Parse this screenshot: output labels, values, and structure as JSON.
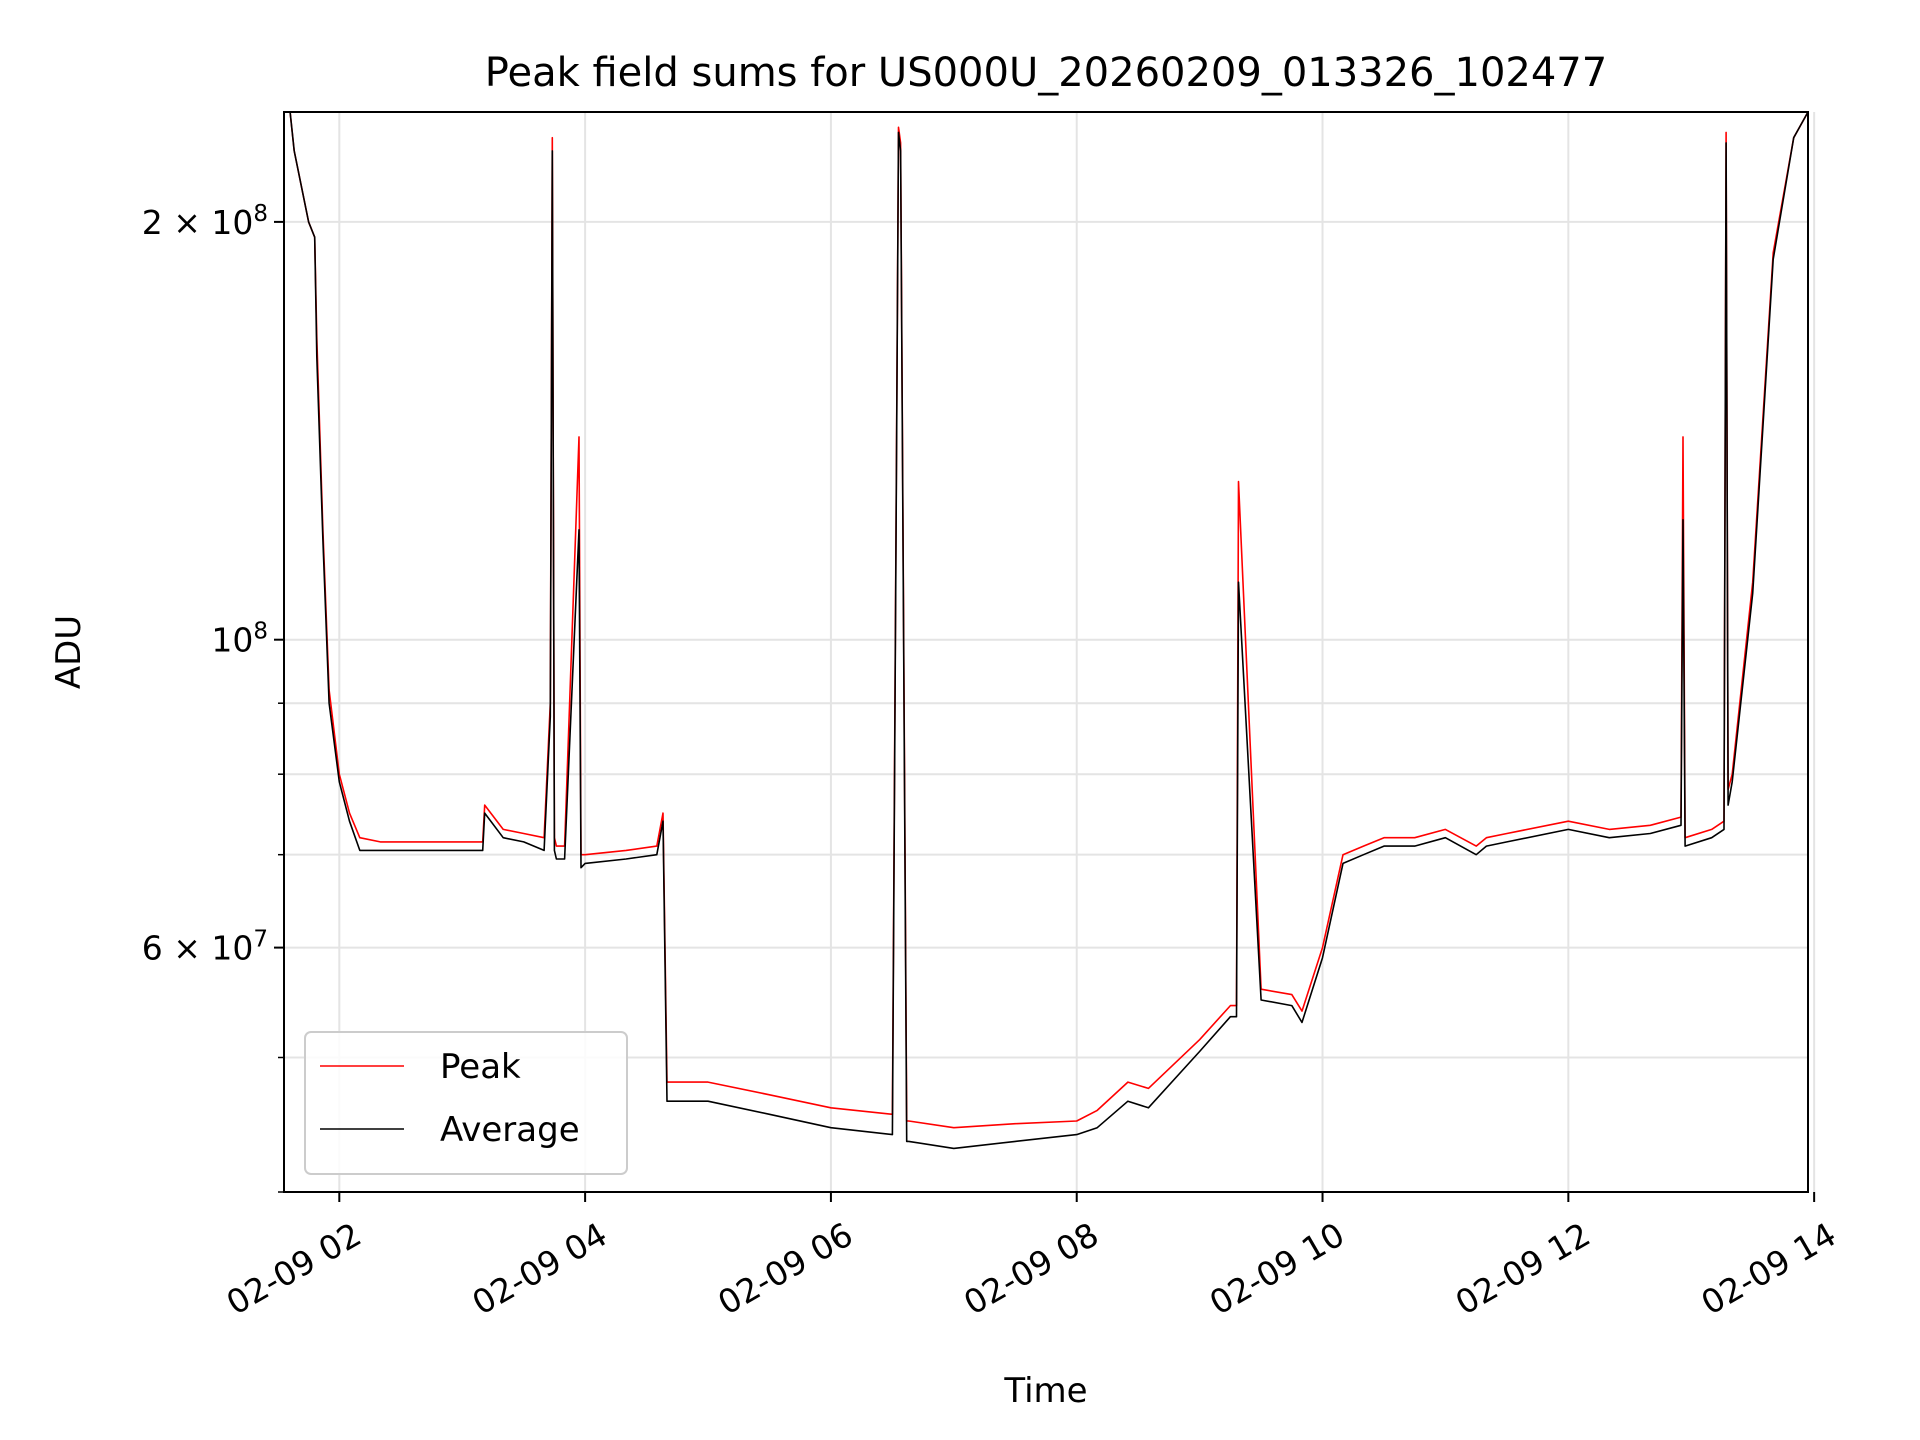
{
  "chart_data": {
    "type": "line",
    "title": "Peak field sums for US000U_20260209_013326_102477",
    "xlabel": "Time",
    "ylabel": "ADU",
    "y_scale": "log",
    "grid": true,
    "legend_position": "lower-left",
    "xlim": [
      "2026-02-09 01:33",
      "2026-02-09 13:57"
    ],
    "ylim": [
      40000000,
      240000000
    ],
    "x_ticks": [
      "02-09 02",
      "02-09 04",
      "02-09 06",
      "02-09 08",
      "02-09 10",
      "02-09 12",
      "02-09 14"
    ],
    "y_ticks": [
      "6 × 10^7",
      "10^8",
      "2 × 10^8"
    ],
    "x_tick_values": [
      "2026-02-09 02:00",
      "2026-02-09 04:00",
      "2026-02-09 06:00",
      "2026-02-09 08:00",
      "2026-02-09 10:00",
      "2026-02-09 12:00",
      "2026-02-09 14:00"
    ],
    "y_tick_values": [
      60000000,
      100000000,
      200000000
    ],
    "y_tick_labels": [
      {
        "base": "6 × 10",
        "exp": "7"
      },
      {
        "base": "10",
        "exp": "8"
      },
      {
        "base": "2 × 10",
        "exp": "8"
      }
    ],
    "x": [
      "2026-02-09 01:36",
      "2026-02-09 01:38",
      "2026-02-09 01:45",
      "2026-02-09 01:48",
      "2026-02-09 01:49",
      "2026-02-09 01:52",
      "2026-02-09 01:55",
      "2026-02-09 02:00",
      "2026-02-09 02:05",
      "2026-02-09 02:10",
      "2026-02-09 02:20",
      "2026-02-09 02:40",
      "2026-02-09 03:00",
      "2026-02-09 03:10",
      "2026-02-09 03:11",
      "2026-02-09 03:20",
      "2026-02-09 03:30",
      "2026-02-09 03:40",
      "2026-02-09 03:43",
      "2026-02-09 03:44",
      "2026-02-09 03:45",
      "2026-02-09 03:46",
      "2026-02-09 03:50",
      "2026-02-09 03:57",
      "2026-02-09 03:58",
      "2026-02-09 04:00",
      "2026-02-09 04:20",
      "2026-02-09 04:35",
      "2026-02-09 04:38",
      "2026-02-09 04:40",
      "2026-02-09 05:00",
      "2026-02-09 05:30",
      "2026-02-09 06:00",
      "2026-02-09 06:30",
      "2026-02-09 06:33",
      "2026-02-09 06:34",
      "2026-02-09 06:37",
      "2026-02-09 06:38",
      "2026-02-09 07:00",
      "2026-02-09 07:30",
      "2026-02-09 08:00",
      "2026-02-09 08:10",
      "2026-02-09 08:25",
      "2026-02-09 08:35",
      "2026-02-09 09:00",
      "2026-02-09 09:15",
      "2026-02-09 09:18",
      "2026-02-09 09:19",
      "2026-02-09 09:30",
      "2026-02-09 09:45",
      "2026-02-09 09:50",
      "2026-02-09 10:00",
      "2026-02-09 10:10",
      "2026-02-09 10:20",
      "2026-02-09 10:30",
      "2026-02-09 10:45",
      "2026-02-09 11:00",
      "2026-02-09 11:15",
      "2026-02-09 11:20",
      "2026-02-09 11:30",
      "2026-02-09 12:00",
      "2026-02-09 12:20",
      "2026-02-09 12:40",
      "2026-02-09 12:55",
      "2026-02-09 12:56",
      "2026-02-09 12:57",
      "2026-02-09 13:10",
      "2026-02-09 13:16",
      "2026-02-09 13:17",
      "2026-02-09 13:18",
      "2026-02-09 13:20",
      "2026-02-09 13:30",
      "2026-02-09 13:40",
      "2026-02-09 13:50",
      "2026-02-09 13:57"
    ],
    "series": [
      {
        "name": "Peak",
        "color": "#ff0000",
        "values": [
          240000000,
          225000000,
          200000000,
          195000000,
          165000000,
          120000000,
          92000000,
          80000000,
          75000000,
          72000000,
          71500000,
          71500000,
          71500000,
          71500000,
          76000000,
          73000000,
          72500000,
          72000000,
          90000000,
          230000000,
          72000000,
          71000000,
          71000000,
          140000000,
          70000000,
          70000000,
          70500000,
          71000000,
          75000000,
          48000000,
          48000000,
          47000000,
          46000000,
          45500000,
          234000000,
          228000000,
          45000000,
          45000000,
          44500000,
          44800000,
          45000000,
          45800000,
          48000000,
          47500000,
          51500000,
          54500000,
          54500000,
          130000000,
          56000000,
          55500000,
          54000000,
          60000000,
          70000000,
          71000000,
          72000000,
          72000000,
          73000000,
          71000000,
          72000000,
          72500000,
          74000000,
          73000000,
          73500000,
          74500000,
          140000000,
          72000000,
          73000000,
          74000000,
          232000000,
          78000000,
          80000000,
          110000000,
          190000000,
          230000000,
          240000000
        ]
      },
      {
        "name": "Average",
        "color": "#000000",
        "values": [
          240000000,
          225000000,
          200000000,
          195000000,
          160000000,
          118000000,
          90000000,
          79000000,
          74000000,
          70500000,
          70500000,
          70500000,
          70500000,
          70500000,
          75000000,
          72000000,
          71500000,
          70500000,
          88000000,
          225000000,
          70500000,
          69500000,
          69500000,
          120000000,
          68500000,
          69000000,
          69500000,
          70000000,
          74000000,
          46500000,
          46500000,
          45500000,
          44500000,
          44000000,
          232000000,
          225000000,
          43500000,
          43500000,
          43000000,
          43500000,
          44000000,
          44500000,
          46500000,
          46000000,
          50500000,
          53500000,
          53500000,
          110000000,
          55000000,
          54500000,
          53000000,
          59000000,
          69000000,
          70000000,
          71000000,
          71000000,
          72000000,
          70000000,
          71000000,
          71500000,
          73000000,
          72000000,
          72500000,
          73500000,
          122000000,
          71000000,
          72000000,
          73000000,
          228000000,
          76000000,
          79000000,
          108000000,
          188000000,
          230000000,
          240000000
        ]
      }
    ]
  }
}
